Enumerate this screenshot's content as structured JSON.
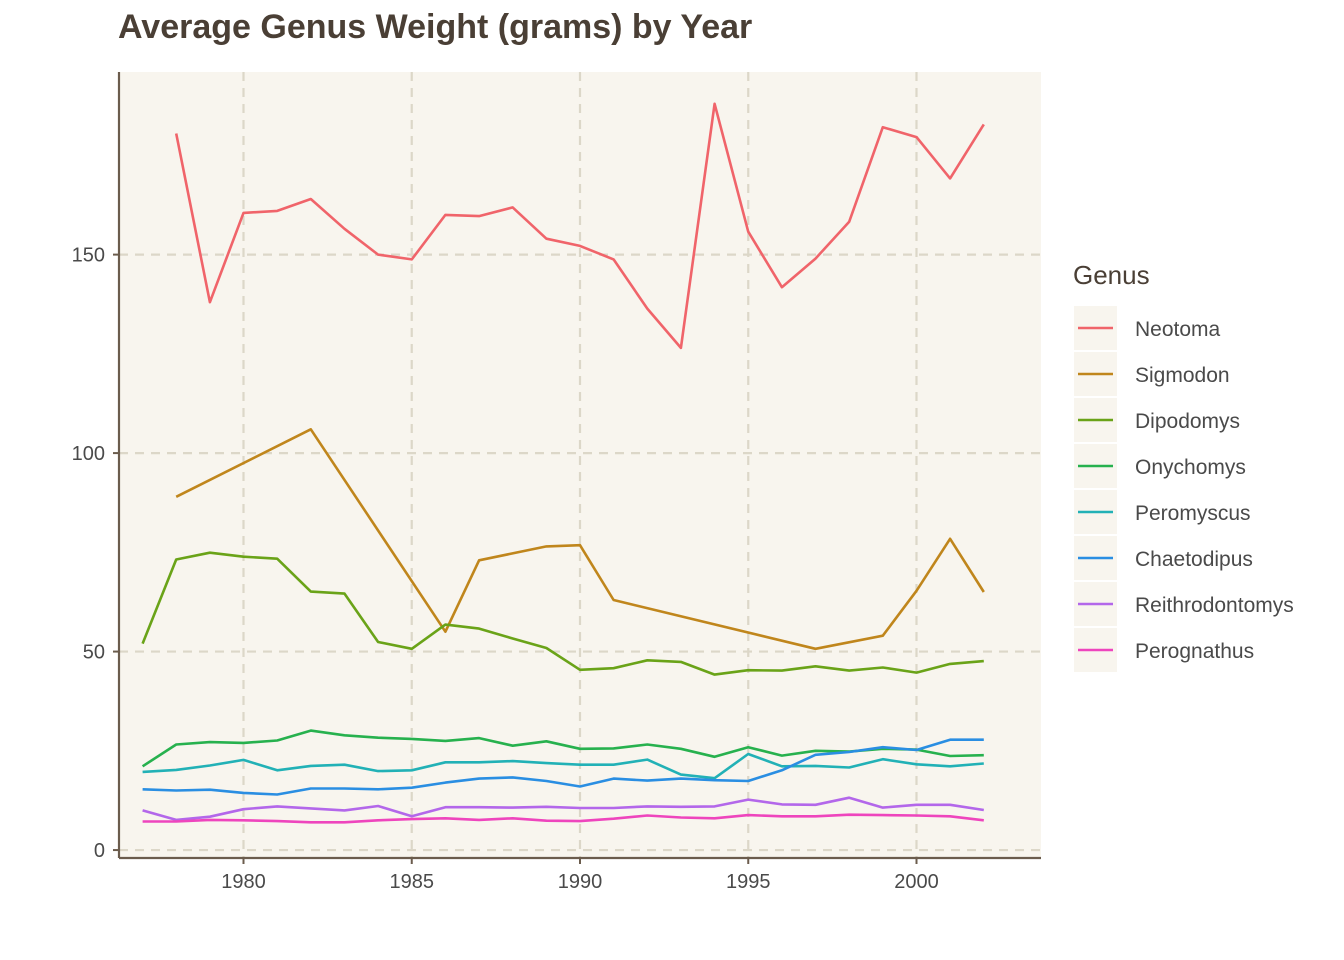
{
  "chart_data": {
    "type": "line",
    "title": "Average Genus Weight (grams) by Year",
    "xlabel": "",
    "ylabel": "",
    "xlim": [
      1976.3,
      2003.7
    ],
    "ylim": [
      -2,
      196
    ],
    "x_ticks": [
      1980,
      1985,
      1990,
      1995,
      2000
    ],
    "y_ticks": [
      0,
      50,
      100,
      150
    ],
    "grid": true,
    "legend": {
      "title": "Genus",
      "position": "right"
    },
    "colors": {
      "background": "#ffffff",
      "panel": "#f8f5ee",
      "grid": "#dcd7c8",
      "axis": "#6b5c4d",
      "title": "#4a3f35"
    },
    "series": [
      {
        "name": "Neotoma",
        "color": "#f0646a",
        "x": [
          1978,
          1979,
          1980,
          1981,
          1982,
          1983,
          1984,
          1985,
          1986,
          1987,
          1988,
          1989,
          1990,
          1991,
          1992,
          1993,
          1994,
          1995,
          1996,
          1997,
          1998,
          1999,
          2000,
          2001,
          2002
        ],
        "y": [
          180.5,
          138,
          160.5,
          161,
          164,
          156.5,
          150,
          148.8,
          160,
          159.7,
          161.9,
          154,
          152.2,
          148.8,
          136.4,
          126.5,
          188,
          155.8,
          141.8,
          149,
          158.3,
          182.1,
          179.6,
          169.2,
          182.8
        ]
      },
      {
        "name": "Sigmodon",
        "color": "#c0861c",
        "x": [
          1978,
          1982,
          1986,
          1987,
          1989,
          1990,
          1991,
          1997,
          1999,
          2000,
          2001,
          2002
        ],
        "y": [
          89,
          106,
          55,
          73,
          76.5,
          76.8,
          63,
          50.7,
          54,
          65.3,
          78.4,
          65
        ]
      },
      {
        "name": "Dipodomys",
        "color": "#6aa318",
        "x": [
          1977,
          1978,
          1979,
          1980,
          1981,
          1982,
          1983,
          1984,
          1985,
          1986,
          1987,
          1988,
          1989,
          1990,
          1991,
          1992,
          1993,
          1994,
          1995,
          1996,
          1997,
          1998,
          1999,
          2000,
          2001,
          2002
        ],
        "y": [
          52,
          73.2,
          74.9,
          73.9,
          73.4,
          65.1,
          64.6,
          52.4,
          50.7,
          56.8,
          55.8,
          53.3,
          50.9,
          45.4,
          45.8,
          47.8,
          47.4,
          44.2,
          45.3,
          45.2,
          46.3,
          45.2,
          46,
          44.7,
          46.9,
          47.6
        ]
      },
      {
        "name": "Onychomys",
        "color": "#27b14e",
        "x": [
          1977,
          1978,
          1979,
          1980,
          1981,
          1982,
          1983,
          1984,
          1985,
          1986,
          1987,
          1988,
          1989,
          1990,
          1991,
          1992,
          1993,
          1994,
          1995,
          1996,
          1997,
          1998,
          1999,
          2000,
          2001,
          2002
        ],
        "y": [
          21.1,
          26.6,
          27.2,
          27,
          27.6,
          30.1,
          28.9,
          28.3,
          28,
          27.5,
          28.2,
          26.3,
          27.4,
          25.5,
          25.6,
          26.6,
          25.5,
          23.5,
          25.9,
          23.8,
          25,
          24.8,
          25.5,
          25.3,
          23.7,
          23.9
        ]
      },
      {
        "name": "Peromyscus",
        "color": "#22b1b6",
        "x": [
          1977,
          1978,
          1979,
          1980,
          1981,
          1982,
          1983,
          1984,
          1985,
          1986,
          1987,
          1988,
          1989,
          1990,
          1991,
          1992,
          1993,
          1994,
          1995,
          1996,
          1997,
          1998,
          1999,
          2000,
          2001,
          2002
        ],
        "y": [
          19.7,
          20.2,
          21.3,
          22.7,
          20.1,
          21.2,
          21.5,
          19.9,
          20.1,
          22.1,
          22.1,
          22.4,
          21.9,
          21.5,
          21.5,
          22.8,
          19,
          18.1,
          24.2,
          21.1,
          21.2,
          20.8,
          22.9,
          21.6,
          21.1,
          21.8
        ]
      },
      {
        "name": "Chaetodipus",
        "color": "#2a8ee2",
        "x": [
          1977,
          1978,
          1979,
          1980,
          1981,
          1982,
          1983,
          1984,
          1985,
          1986,
          1987,
          1988,
          1989,
          1990,
          1991,
          1992,
          1993,
          1994,
          1995,
          1996,
          1997,
          1998,
          1999,
          2000,
          2001,
          2002
        ],
        "y": [
          15.3,
          15,
          15.2,
          14.4,
          14,
          15.5,
          15.5,
          15.3,
          15.7,
          17,
          18,
          18.3,
          17.4,
          16,
          18,
          17.5,
          18,
          17.6,
          17.4,
          20.1,
          24,
          24.7,
          25.9,
          25.2,
          27.8,
          27.8
        ]
      },
      {
        "name": "Reithrodontomys",
        "color": "#b367ea",
        "x": [
          1977,
          1978,
          1979,
          1980,
          1981,
          1982,
          1983,
          1984,
          1985,
          1986,
          1987,
          1988,
          1989,
          1990,
          1991,
          1992,
          1993,
          1994,
          1995,
          1996,
          1997,
          1998,
          1999,
          2000,
          2001,
          2002
        ],
        "y": [
          10,
          7.6,
          8.4,
          10.3,
          11,
          10.5,
          10,
          11.1,
          8.5,
          10.8,
          10.8,
          10.7,
          10.9,
          10.6,
          10.6,
          11,
          10.9,
          11,
          12.7,
          11.5,
          11.4,
          13.2,
          10.7,
          11.4,
          11.4,
          10.1
        ]
      },
      {
        "name": "Perognathus",
        "color": "#ee45bd",
        "x": [
          1977,
          1978,
          1979,
          1980,
          1981,
          1982,
          1983,
          1984,
          1985,
          1986,
          1987,
          1988,
          1989,
          1990,
          1991,
          1992,
          1993,
          1994,
          1995,
          1996,
          1997,
          1998,
          1999,
          2000,
          2001,
          2002
        ],
        "y": [
          7.2,
          7.2,
          7.6,
          7.5,
          7.3,
          7,
          7,
          7.5,
          7.8,
          8,
          7.6,
          8,
          7.4,
          7.3,
          7.9,
          8.7,
          8.2,
          8,
          8.8,
          8.5,
          8.5,
          8.9,
          8.8,
          8.7,
          8.5,
          7.5
        ]
      }
    ]
  }
}
